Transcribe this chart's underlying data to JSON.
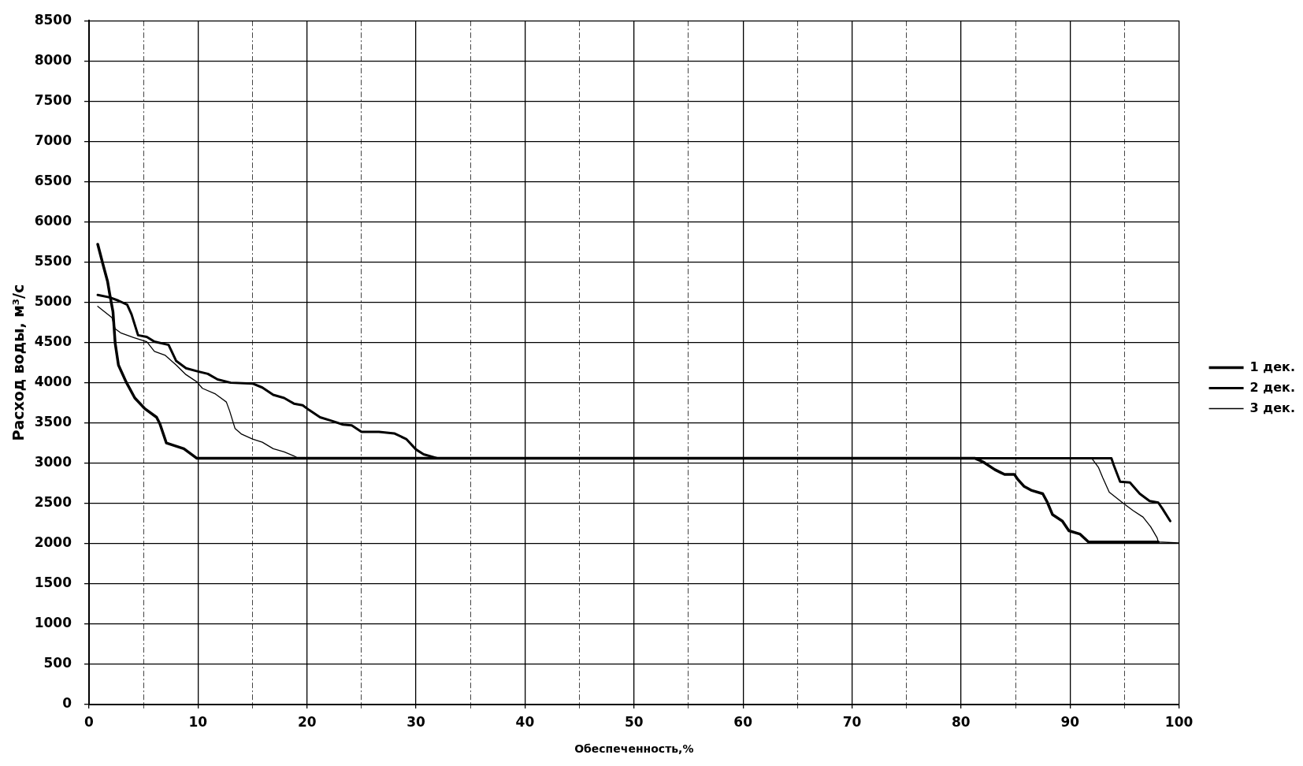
{
  "chart_data": {
    "type": "line",
    "xlabel": "Обеспеченность,%",
    "ylabel": "Расход воды, м³/с",
    "xlim": [
      0,
      100
    ],
    "xticks": [
      0,
      {
        "value": 5,
        "label": null
      },
      10,
      {
        "value": 15,
        "label": null
      },
      20,
      {
        "value": 25,
        "label": null
      },
      30,
      {
        "value": 35,
        "label": null
      },
      40,
      {
        "value": 45,
        "label": null
      },
      50,
      {
        "value": 55,
        "label": null
      },
      60,
      {
        "value": 65,
        "label": null
      },
      70,
      {
        "value": 75,
        "label": null
      },
      80,
      {
        "value": 85,
        "label": null
      },
      90,
      {
        "value": 95,
        "label": null
      },
      100
    ],
    "ylim": [
      0,
      8500
    ],
    "yticks": [
      0,
      500,
      1000,
      1500,
      2000,
      2500,
      3000,
      3500,
      4000,
      4500,
      5000,
      5500,
      6000,
      6500,
      7000,
      7500,
      8000,
      8500
    ],
    "grid": true,
    "legend": "right",
    "series": [
      {
        "name": "1 дек.",
        "color": "#000000",
        "x": [
          0.8,
          1.3,
          1.7,
          1.9,
          2.2,
          2.4,
          2.7,
          3.4,
          4.2,
          5.1,
          6.2,
          6.5,
          7.1,
          8.7,
          9.9,
          81.3,
          82.1,
          83.1,
          84.0,
          84.9,
          85.2,
          85.8,
          86.5,
          87.5,
          87.9,
          88.4,
          89.3,
          89.9,
          90.9,
          91.7,
          98.1
        ],
        "values": [
          5720,
          5460,
          5260,
          5100,
          4880,
          4490,
          4220,
          4010,
          3810,
          3680,
          3570,
          3490,
          3250,
          3180,
          3060,
          3060,
          3010,
          2920,
          2860,
          2860,
          2800,
          2710,
          2660,
          2620,
          2520,
          2360,
          2280,
          2160,
          2120,
          2020,
          2020
        ]
      },
      {
        "name": "2 дек.",
        "color": "#000000",
        "x": [
          0.8,
          1.9,
          2.7,
          3.5,
          3.9,
          4.5,
          5.3,
          6.0,
          7.3,
          8.0,
          8.9,
          10.0,
          10.9,
          11.8,
          13.0,
          15.0,
          15.9,
          16.9,
          17.9,
          18.8,
          19.6,
          20.2,
          21.2,
          22.4,
          23.3,
          24.1,
          25.0,
          26.6,
          28.0,
          29.1,
          30.0,
          30.7,
          32.0,
          93.8,
          94.0,
          94.6,
          95.5,
          96.4,
          97.3,
          98.1,
          98.5,
          99.2
        ],
        "values": [
          5090,
          5060,
          5020,
          4970,
          4850,
          4590,
          4570,
          4510,
          4470,
          4270,
          4180,
          4140,
          4110,
          4040,
          4000,
          3990,
          3940,
          3850,
          3810,
          3740,
          3720,
          3660,
          3570,
          3520,
          3480,
          3470,
          3390,
          3390,
          3370,
          3300,
          3170,
          3110,
          3060,
          3060,
          2980,
          2770,
          2760,
          2620,
          2530,
          2510,
          2430,
          2280
        ]
      },
      {
        "name": "3 дек.",
        "color": "#000000",
        "x": [
          0.8,
          2.1,
          2.4,
          2.9,
          4.1,
          5.3,
          6.0,
          7.0,
          8.0,
          8.9,
          9.9,
          10.4,
          11.6,
          12.6,
          12.9,
          13.4,
          14.0,
          15.0,
          15.9,
          16.9,
          17.9,
          18.8,
          19.2,
          92.0,
          92.6,
          93.0,
          93.6,
          94.9,
          95.8,
          96.7,
          97.4,
          98.0,
          98.1,
          100
        ],
        "values": [
          4950,
          4810,
          4670,
          4620,
          4560,
          4510,
          4390,
          4340,
          4220,
          4100,
          4010,
          3930,
          3860,
          3760,
          3650,
          3430,
          3360,
          3300,
          3260,
          3180,
          3140,
          3090,
          3060,
          3060,
          2950,
          2820,
          2640,
          2500,
          2410,
          2330,
          2210,
          2070,
          2020,
          2010
        ]
      }
    ]
  }
}
